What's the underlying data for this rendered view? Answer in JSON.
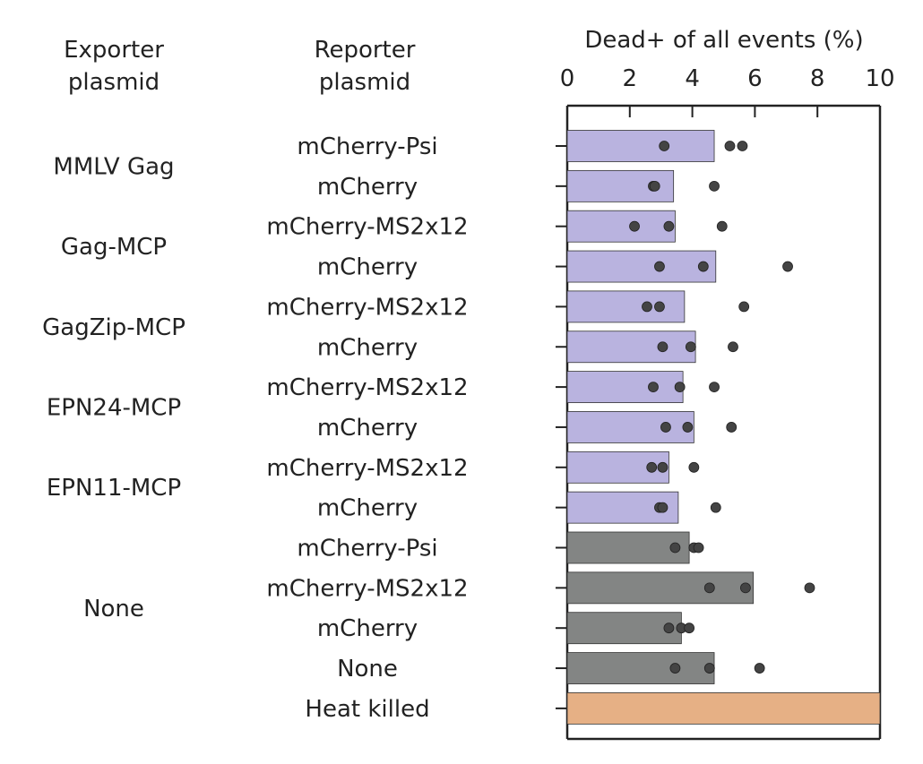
{
  "headers": {
    "exporter": [
      "Exporter",
      "plasmid"
    ],
    "reporter": [
      "Reporter",
      "plasmid"
    ]
  },
  "chart_data": {
    "type": "bar",
    "orientation": "horizontal",
    "xlabel": "Dead+ of all events (%)",
    "xlim": [
      0,
      10
    ],
    "xticks": [
      "0",
      "2",
      "4",
      "6",
      "8",
      "10"
    ],
    "grid": false,
    "colors": {
      "targeted": "#b9b3df",
      "control": "#838584",
      "heat_killed": "#e6b085",
      "point": "#444444",
      "axis": "#222222"
    },
    "exporter_groups": [
      {
        "label": "MMLV Gag",
        "rows": [
          0,
          1
        ]
      },
      {
        "label": "Gag-MCP",
        "rows": [
          2,
          3
        ]
      },
      {
        "label": "GagZip-MCP",
        "rows": [
          4,
          5
        ]
      },
      {
        "label": "EPN24-MCP",
        "rows": [
          6,
          7
        ]
      },
      {
        "label": "EPN11-MCP",
        "rows": [
          8,
          9
        ]
      },
      {
        "label": "None",
        "rows": [
          10,
          11,
          12,
          13
        ]
      }
    ],
    "rows": [
      {
        "reporter": "mCherry-Psi",
        "value": 4.7,
        "points": [
          3.1,
          5.2,
          5.6
        ],
        "group": "targeted"
      },
      {
        "reporter": "mCherry",
        "value": 3.4,
        "points": [
          2.75,
          2.8,
          4.7
        ],
        "group": "targeted"
      },
      {
        "reporter": "mCherry-MS2x12",
        "value": 3.45,
        "points": [
          2.15,
          3.25,
          4.95
        ],
        "group": "targeted"
      },
      {
        "reporter": "mCherry",
        "value": 4.75,
        "points": [
          2.95,
          4.35,
          7.05
        ],
        "group": "targeted"
      },
      {
        "reporter": "mCherry-MS2x12",
        "value": 3.75,
        "points": [
          2.55,
          2.95,
          5.65
        ],
        "group": "targeted"
      },
      {
        "reporter": "mCherry",
        "value": 4.1,
        "points": [
          3.05,
          3.95,
          5.3
        ],
        "group": "targeted"
      },
      {
        "reporter": "mCherry-MS2x12",
        "value": 3.7,
        "points": [
          2.75,
          3.6,
          4.7
        ],
        "group": "targeted"
      },
      {
        "reporter": "mCherry",
        "value": 4.05,
        "points": [
          3.15,
          3.85,
          5.25
        ],
        "group": "targeted"
      },
      {
        "reporter": "mCherry-MS2x12",
        "value": 3.25,
        "points": [
          2.7,
          3.05,
          4.05
        ],
        "group": "targeted"
      },
      {
        "reporter": "mCherry",
        "value": 3.55,
        "points": [
          2.95,
          3.05,
          4.75
        ],
        "group": "targeted"
      },
      {
        "reporter": "mCherry-Psi",
        "value": 3.9,
        "points": [
          3.45,
          4.05,
          4.2
        ],
        "group": "control"
      },
      {
        "reporter": "mCherry-MS2x12",
        "value": 5.95,
        "points": [
          4.55,
          5.7,
          7.75
        ],
        "group": "control"
      },
      {
        "reporter": "mCherry",
        "value": 3.65,
        "points": [
          3.25,
          3.65,
          3.9
        ],
        "group": "control"
      },
      {
        "reporter": "None",
        "value": 4.7,
        "points": [
          3.45,
          4.55,
          6.15
        ],
        "group": "control"
      },
      {
        "reporter": "Heat killed",
        "value": 10,
        "points": [],
        "group": "heat_killed"
      }
    ]
  }
}
